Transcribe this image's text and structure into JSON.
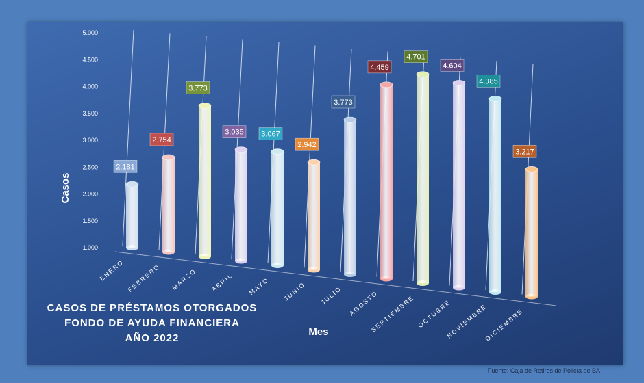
{
  "chart_data": {
    "type": "bar",
    "title_lines": [
      "CASOS DE PRÉSTAMOS OTORGADOS",
      "FONDO DE AYUDA FINANCIERA",
      "AÑO 2022"
    ],
    "xlabel": "Mes",
    "ylabel": "Casos",
    "categories": [
      "ENERO",
      "FEBRERO",
      "MARZO",
      "ABRIL",
      "MAYO",
      "JUNIO",
      "JULIO",
      "AGOSTO",
      "SEPTIEMBRE",
      "OCTUBRE",
      "NOVIEMBRE",
      "DICIEMBRE"
    ],
    "values": [
      2181,
      2754,
      3773,
      3035,
      3067,
      2942,
      3773,
      4459,
      4701,
      4604,
      4385,
      3217
    ],
    "value_labels": [
      "2.181",
      "2.754",
      "3.773",
      "3.035",
      "3.067",
      "2.942",
      "3.773",
      "4.459",
      "4.701",
      "4.604",
      "4.385",
      "3.217"
    ],
    "ylim": [
      1000,
      5000
    ],
    "y_ticks": [
      "1.000",
      "1.500",
      "2.000",
      "2.500",
      "3.000",
      "3.500",
      "4.000",
      "4.500",
      "5.000"
    ],
    "grid": true,
    "legend": "none",
    "bar_colors": [
      "#cfe0f2",
      "#f4c6c2",
      "#eef3b8",
      "#ddd3ee",
      "#cdeaf2",
      "#fbd3b0",
      "#b9cde8",
      "#f5a6a6",
      "#e3efb4",
      "#ddd0ef",
      "#bfe9f2",
      "#f9c48a"
    ],
    "label_colors": [
      "#8aa8d6",
      "#c0504d",
      "#77933c",
      "#8064a2",
      "#31a8c6",
      "#e3893a",
      "#3b5f91",
      "#7b2d33",
      "#5c7a2e",
      "#5e4a82",
      "#1f8f99",
      "#b8602b"
    ]
  },
  "source_text": "Fuente: Caja de Retiros de Policía de BA"
}
